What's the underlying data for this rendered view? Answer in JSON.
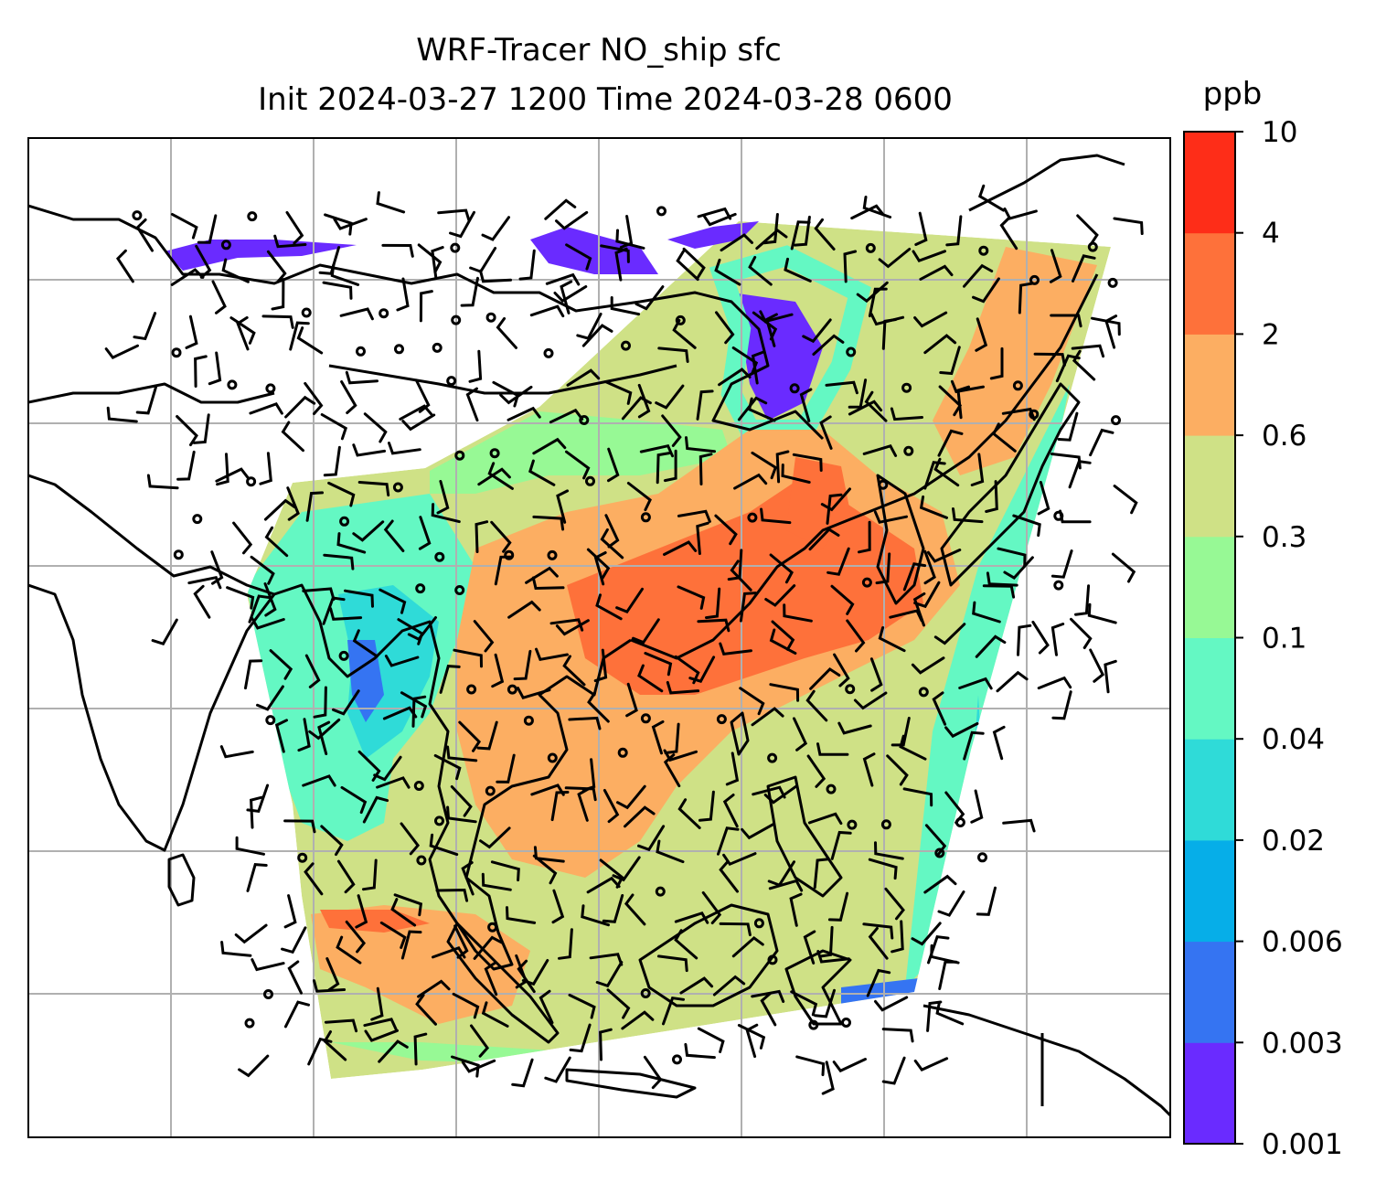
{
  "title": {
    "line1": "WRF-Tracer NO_ship sfc",
    "line2": "Init 2024-03-27 1200 Time 2024-03-28 0600"
  },
  "colorbar": {
    "unit_label": "ppb",
    "tick_labels": [
      "0.001",
      "0.003",
      "0.006",
      "0.02",
      "0.04",
      "0.1",
      "0.3",
      "0.6",
      "2",
      "4",
      "10"
    ],
    "level_colors": [
      "#6a2bff",
      "#3574f2",
      "#06aee8",
      "#2fdbd8",
      "#64f8c3",
      "#97f995",
      "#cfe186",
      "#fcae62",
      "#fe713a",
      "#fe2d18"
    ]
  },
  "map": {
    "ocean_color": "#ffffff",
    "coastline_color": "#000000",
    "gridline_color": "#b0b0b0",
    "gridlines_shown": true,
    "wind_barbs_shown": true,
    "calm_circles_shown": true
  }
}
